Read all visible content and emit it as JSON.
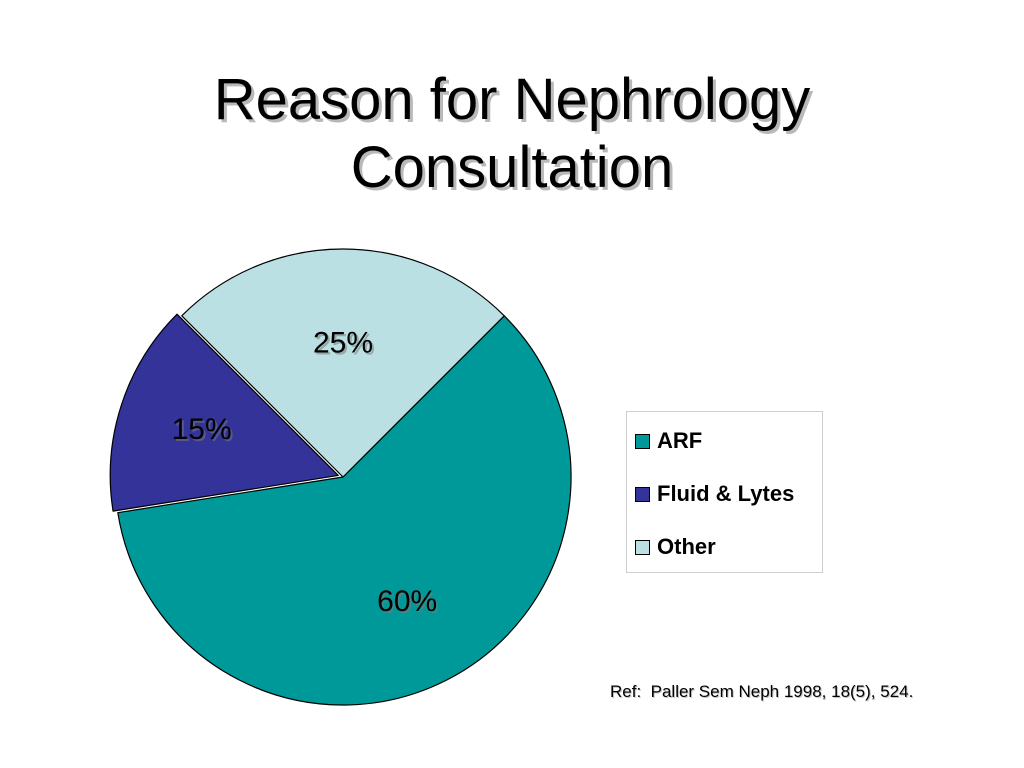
{
  "slide": {
    "title_line1": "Reason for Nephrology",
    "title_line2": "Consultation",
    "reference": "Ref:  Paller Sem Neph 1998, 18(5), 524."
  },
  "chart_data": {
    "type": "pie",
    "title": "",
    "legend_position": "right",
    "slices": [
      {
        "name": "ARF",
        "value": 60,
        "label": "60%",
        "color": "#009999"
      },
      {
        "name": "Fluid & Lytes",
        "value": 15,
        "label": "15%",
        "color": "#333399"
      },
      {
        "name": "Other",
        "value": 25,
        "label": "25%",
        "color": "#bbe0e3"
      }
    ]
  }
}
